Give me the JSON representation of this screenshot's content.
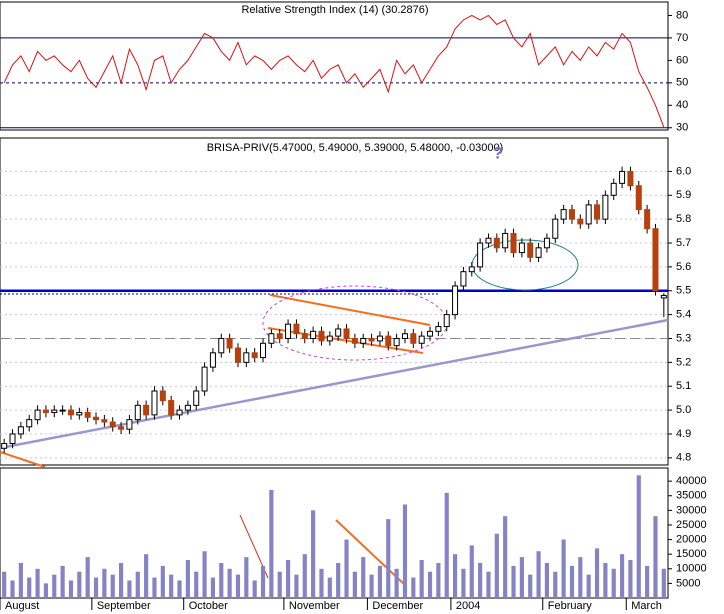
{
  "chart_data": [
    {
      "type": "line",
      "title": "Relative Strength Index (14) (30.2876)",
      "color": "#dd1111",
      "values": [
        50,
        58,
        62,
        55,
        64,
        60,
        62,
        58,
        55,
        60,
        52,
        48,
        55,
        62,
        50,
        65,
        58,
        47,
        60,
        62,
        50,
        56,
        60,
        66,
        72,
        70,
        64,
        60,
        68,
        58,
        62,
        60,
        56,
        60,
        62,
        58,
        55,
        60,
        52,
        56,
        58,
        50,
        54,
        48,
        52,
        56,
        46,
        60,
        54,
        58,
        50,
        56,
        62,
        66,
        74,
        78,
        80,
        78,
        80,
        76,
        78,
        70,
        66,
        72,
        58,
        62,
        66,
        58,
        64,
        60,
        66,
        62,
        68,
        65,
        72,
        68,
        55,
        48,
        40,
        30.29
      ],
      "ylim": [
        29,
        86
      ],
      "yticks": [
        30,
        40,
        50,
        60,
        70,
        80
      ],
      "reference_lines": [
        30,
        50,
        70
      ]
    },
    {
      "type": "candlestick",
      "title": "BRISA-PRIV(5.47000, 5.49000, 5.39000, 5.48000, -0.03000)",
      "annotations": [
        "?"
      ],
      "categories": [
        "August",
        null,
        null,
        null,
        null,
        null,
        null,
        null,
        null,
        null,
        null,
        "September",
        null,
        null,
        null,
        null,
        null,
        null,
        null,
        null,
        null,
        null,
        "October",
        null,
        null,
        null,
        null,
        null,
        null,
        null,
        null,
        null,
        null,
        null,
        "November",
        null,
        null,
        null,
        null,
        null,
        null,
        null,
        null,
        null,
        "December",
        null,
        null,
        null,
        null,
        null,
        null,
        null,
        null,
        null,
        "2004",
        null,
        null,
        null,
        null,
        null,
        null,
        null,
        null,
        null,
        null,
        "February",
        null,
        null,
        null,
        null,
        null,
        null,
        null,
        null,
        null,
        "March",
        null,
        null,
        null,
        null
      ],
      "open": [
        4.84,
        4.86,
        4.9,
        4.93,
        4.96,
        5.0,
        4.99,
        5.0,
        5.0,
        4.98,
        4.99,
        4.97,
        4.96,
        4.95,
        4.93,
        4.92,
        4.96,
        5.02,
        4.98,
        5.08,
        5.04,
        4.98,
        5.0,
        5.02,
        5.08,
        5.18,
        5.24,
        5.3,
        5.26,
        5.2,
        5.24,
        5.22,
        5.28,
        5.32,
        5.3,
        5.36,
        5.32,
        5.3,
        5.33,
        5.29,
        5.31,
        5.34,
        5.3,
        5.28,
        5.3,
        5.29,
        5.31,
        5.27,
        5.3,
        5.32,
        5.28,
        5.31,
        5.33,
        5.35,
        5.4,
        5.52,
        5.58,
        5.6,
        5.7,
        5.72,
        5.68,
        5.74,
        5.66,
        5.7,
        5.64,
        5.68,
        5.72,
        5.8,
        5.84,
        5.8,
        5.78,
        5.86,
        5.8,
        5.9,
        5.95,
        6.0,
        5.94,
        5.84,
        5.76,
        5.47
      ],
      "high": [
        4.88,
        4.92,
        4.95,
        4.98,
        5.02,
        5.02,
        5.02,
        5.02,
        5.02,
        5.01,
        5.01,
        4.99,
        4.98,
        4.97,
        4.95,
        4.98,
        5.04,
        5.04,
        5.1,
        5.1,
        5.06,
        5.02,
        5.04,
        5.1,
        5.2,
        5.26,
        5.32,
        5.32,
        5.28,
        5.26,
        5.26,
        5.3,
        5.34,
        5.34,
        5.38,
        5.38,
        5.34,
        5.35,
        5.35,
        5.33,
        5.36,
        5.36,
        5.32,
        5.32,
        5.32,
        5.33,
        5.33,
        5.32,
        5.34,
        5.34,
        5.33,
        5.35,
        5.37,
        5.42,
        5.54,
        5.6,
        5.62,
        5.72,
        5.74,
        5.74,
        5.76,
        5.76,
        5.72,
        5.72,
        5.7,
        5.74,
        5.82,
        5.86,
        5.86,
        5.82,
        5.88,
        5.88,
        5.92,
        5.97,
        6.02,
        6.02,
        5.96,
        5.86,
        5.78,
        5.49
      ],
      "low": [
        4.82,
        4.84,
        4.88,
        4.91,
        4.94,
        4.97,
        4.97,
        4.98,
        4.96,
        4.96,
        4.95,
        4.94,
        4.93,
        4.91,
        4.9,
        4.9,
        4.94,
        4.96,
        4.96,
        5.02,
        4.96,
        4.96,
        4.98,
        5.0,
        5.06,
        5.16,
        5.22,
        5.24,
        5.18,
        5.18,
        5.2,
        5.2,
        5.26,
        5.28,
        5.28,
        5.3,
        5.28,
        5.28,
        5.27,
        5.27,
        5.29,
        5.28,
        5.26,
        5.26,
        5.27,
        5.27,
        5.25,
        5.25,
        5.28,
        5.26,
        5.26,
        5.29,
        5.31,
        5.33,
        5.38,
        5.5,
        5.56,
        5.58,
        5.68,
        5.66,
        5.66,
        5.64,
        5.64,
        5.62,
        5.62,
        5.66,
        5.7,
        5.78,
        5.78,
        5.76,
        5.76,
        5.78,
        5.78,
        5.88,
        5.93,
        5.92,
        5.82,
        5.74,
        5.48,
        5.39
      ],
      "close": [
        4.86,
        4.9,
        4.93,
        4.96,
        5.0,
        4.99,
        5.0,
        5.0,
        4.98,
        4.99,
        4.97,
        4.96,
        4.95,
        4.93,
        4.92,
        4.96,
        5.02,
        4.98,
        5.08,
        5.04,
        4.98,
        5.0,
        5.02,
        5.08,
        5.18,
        5.24,
        5.3,
        5.26,
        5.2,
        5.24,
        5.22,
        5.28,
        5.32,
        5.3,
        5.36,
        5.32,
        5.3,
        5.33,
        5.29,
        5.31,
        5.34,
        5.3,
        5.28,
        5.3,
        5.29,
        5.31,
        5.27,
        5.3,
        5.32,
        5.28,
        5.31,
        5.33,
        5.35,
        5.4,
        5.52,
        5.58,
        5.6,
        5.7,
        5.72,
        5.68,
        5.74,
        5.66,
        5.7,
        5.64,
        5.68,
        5.72,
        5.8,
        5.84,
        5.8,
        5.78,
        5.86,
        5.8,
        5.9,
        5.95,
        6.0,
        5.94,
        5.84,
        5.76,
        5.5,
        5.48
      ],
      "up_color": "#ffffff",
      "down_color": "#b8400c",
      "ylim": [
        4.77,
        6.14
      ],
      "yticks": [
        4.8,
        4.9,
        {
          "value": 5.0,
          "label": "5.0"
        },
        5.1,
        5.2,
        5.3,
        5.4,
        5.5,
        5.6,
        5.7,
        5.8,
        5.9,
        {
          "value": 6.0,
          "label": "6.0"
        }
      ],
      "grid": true,
      "reference_lines": [
        5.5,
        5.3
      ]
    },
    {
      "type": "bar",
      "color": "#8484c4",
      "values": [
        9000,
        6000,
        12000,
        7000,
        10000,
        5000,
        8000,
        11000,
        6000,
        9000,
        14000,
        7000,
        10000,
        8000,
        12000,
        6000,
        9000,
        15000,
        7000,
        11000,
        8000,
        6000,
        13000,
        9000,
        16000,
        7000,
        12000,
        10000,
        8000,
        14000,
        6000,
        11000,
        37000,
        9000,
        13000,
        8000,
        15000,
        30000,
        10000,
        7000,
        12000,
        20000,
        9000,
        14000,
        8000,
        11000,
        27000,
        10000,
        32000,
        7000,
        13000,
        9000,
        12000,
        36000,
        15000,
        10000,
        18000,
        12000,
        9000,
        22000,
        28000,
        11000,
        14000,
        8000,
        16000,
        12000,
        9000,
        20000,
        11000,
        14000,
        8000,
        17000,
        12000,
        10000,
        15000,
        13000,
        42000,
        11000,
        28000,
        10000
      ],
      "ylim": [
        0,
        44500
      ],
      "yticks": [
        5000,
        10000,
        15000,
        20000,
        25000,
        30000,
        35000,
        40000
      ]
    }
  ]
}
